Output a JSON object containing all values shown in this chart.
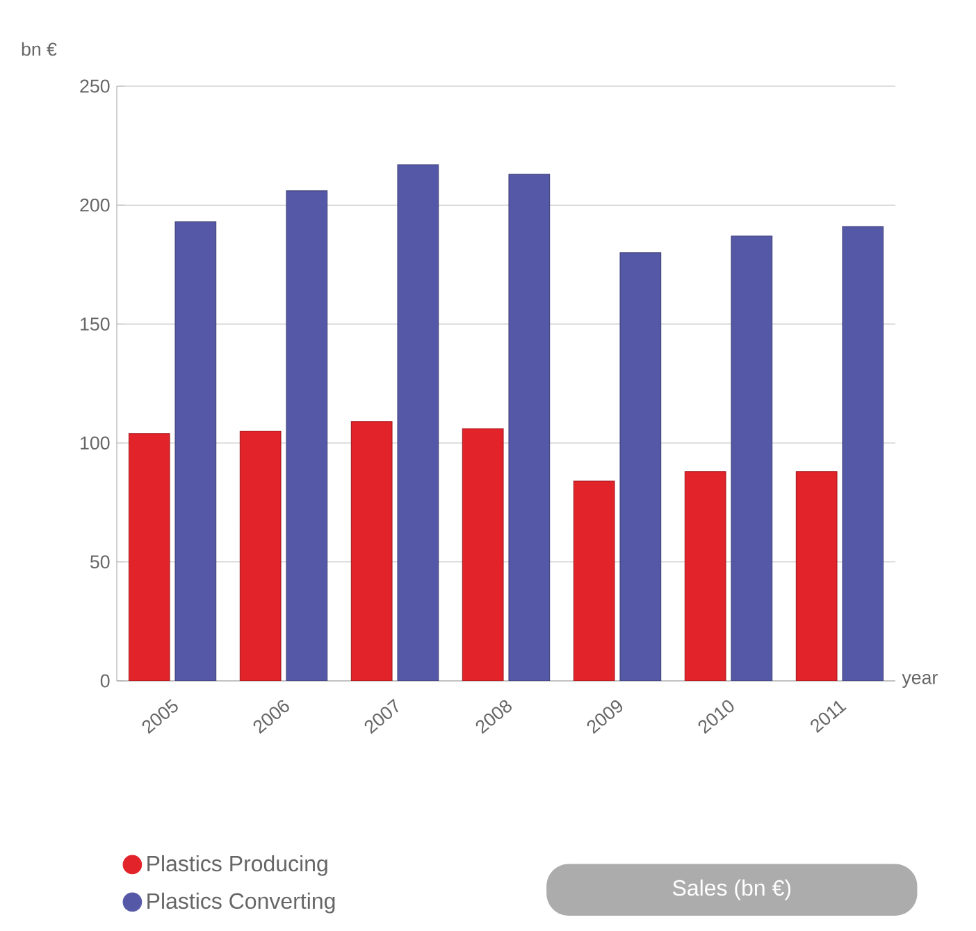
{
  "chart_data": {
    "type": "bar",
    "title": "Sales (bn €)",
    "xlabel": "year",
    "ylabel": "bn €",
    "categories": [
      "2005",
      "2006",
      "2007",
      "2008",
      "2009",
      "2010",
      "2011"
    ],
    "series": [
      {
        "name": "Plastics Producing",
        "color": "#e3232a",
        "values": [
          104,
          105,
          109,
          106,
          84,
          88,
          88
        ]
      },
      {
        "name": "Plastics Converting",
        "color": "#5558a6",
        "values": [
          193,
          206,
          217,
          213,
          180,
          187,
          191
        ]
      }
    ],
    "ylim": [
      0,
      250
    ],
    "yticks": [
      0,
      50,
      100,
      150,
      200,
      250
    ],
    "grid": "y",
    "legend": "bottom left"
  }
}
